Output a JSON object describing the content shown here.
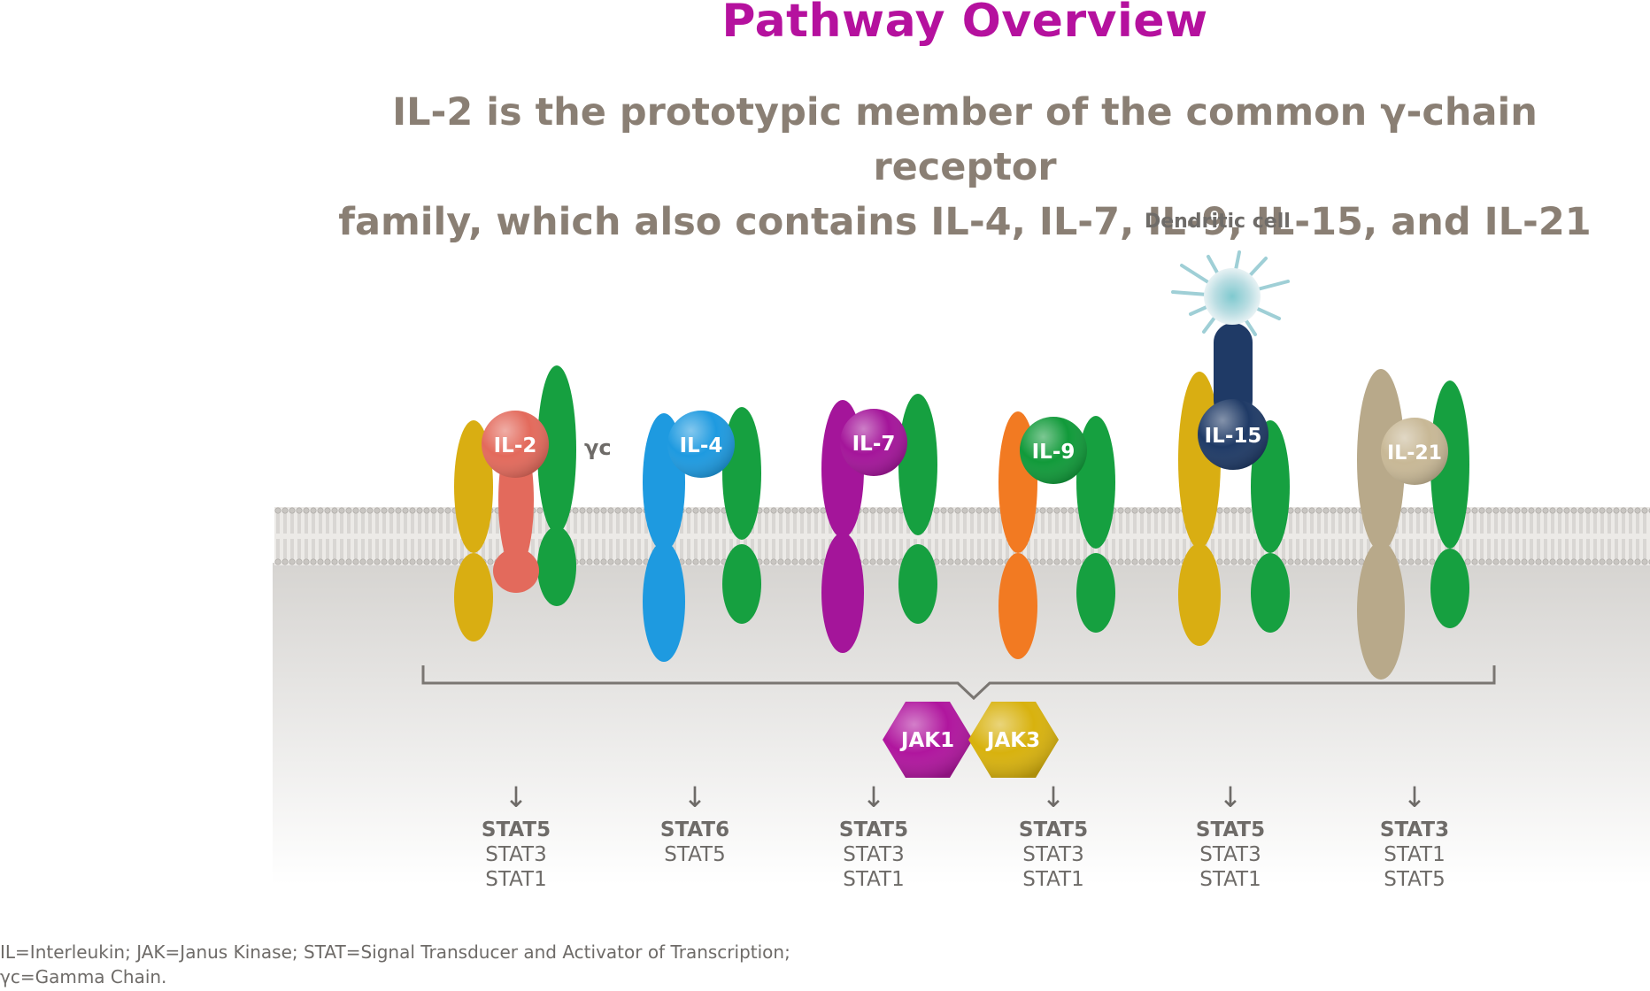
{
  "title": "Pathway Overview",
  "subtitle": {
    "line1": "IL-2 is the prototypic member of the common γ-chain receptor",
    "line2": "family, which also contains IL-4, IL-7, IL-9, IL-15, and IL-21"
  },
  "dendritic_cell_label": "Dendritic cell",
  "gamma_chain_label": "γc",
  "ligands": [
    {
      "label": "IL-2",
      "color": "#e36a5c"
    },
    {
      "label": "IL-4",
      "color": "#1e9ae0"
    },
    {
      "label": "IL-7",
      "color": "#a4159a"
    },
    {
      "label": "IL-9",
      "color": "#119a3a"
    },
    {
      "label": "IL-15",
      "color": "#1f3a66"
    },
    {
      "label": "IL-21",
      "color": "#c8b896"
    }
  ],
  "jaks": [
    {
      "label": "JAK1",
      "color": "#b0169e"
    },
    {
      "label": "JAK3",
      "color": "#d8b20e"
    }
  ],
  "stat_columns": [
    {
      "arrow": "↓",
      "primary": "STAT5",
      "secondary": "STAT3",
      "tertiary": "STAT1"
    },
    {
      "arrow": "↓",
      "primary": "STAT6",
      "secondary": "STAT5",
      "tertiary": ""
    },
    {
      "arrow": "↓",
      "primary": "STAT5",
      "secondary": "STAT3",
      "tertiary": "STAT1"
    },
    {
      "arrow": "↓",
      "primary": "STAT5",
      "secondary": "STAT3",
      "tertiary": "STAT1"
    },
    {
      "arrow": "↓",
      "primary": "STAT5",
      "secondary": "STAT3",
      "tertiary": "STAT1"
    },
    {
      "arrow": "↓",
      "primary": "STAT3",
      "secondary": "STAT1",
      "tertiary": "STAT5"
    }
  ],
  "footnote": {
    "line1": "IL=Interleukin; JAK=Janus Kinase; STAT=Signal Transducer and Activator of Transcription;",
    "line2": "γc=Gamma Chain."
  },
  "colors": {
    "title": "#b5119e",
    "text_gray": "#6e6b68",
    "gamma_chain_green": "#16a040",
    "alpha_yellow": "#d9ae12",
    "il7_purple": "#a4159a",
    "il9_orange": "#f27a22",
    "il21_tan": "#b8a98a",
    "membrane": "#d8d6d3"
  }
}
